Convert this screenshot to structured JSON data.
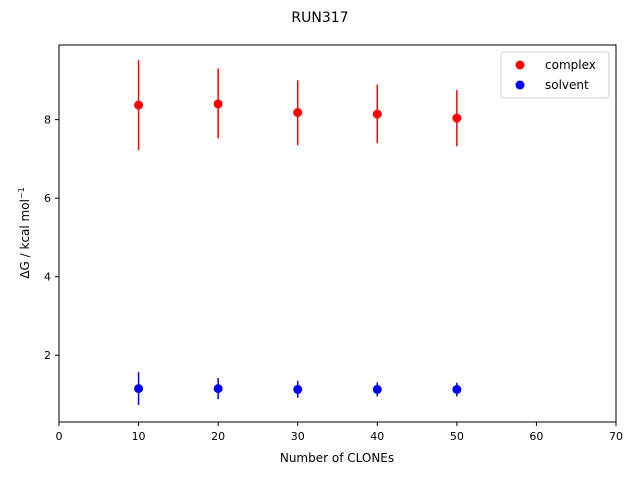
{
  "chart_data": {
    "type": "scatter",
    "title": "RUN317",
    "xlabel": "Number of CLONEs",
    "ylabel": "ΔG / kcal mol",
    "ylabel_superscript": "−1",
    "xlim": [
      0,
      70
    ],
    "ylim": [
      0.3,
      9.9
    ],
    "xticks": [
      0,
      10,
      20,
      30,
      40,
      50,
      60,
      70
    ],
    "yticks": [
      2,
      4,
      6,
      8
    ],
    "grid": false,
    "legend_position": "top-right",
    "series": [
      {
        "name": "complex",
        "color": "#ff0000",
        "x": [
          10,
          20,
          30,
          40,
          50
        ],
        "y": [
          8.37,
          8.4,
          8.18,
          8.14,
          8.04
        ],
        "y_err_low": [
          7.22,
          7.52,
          7.35,
          7.4,
          7.32
        ],
        "y_err_high": [
          9.52,
          9.3,
          9.0,
          8.89,
          8.75
        ]
      },
      {
        "name": "solvent",
        "color": "#0000ff",
        "x": [
          10,
          20,
          30,
          40,
          50
        ],
        "y": [
          1.15,
          1.15,
          1.13,
          1.13,
          1.13
        ],
        "y_err_low": [
          0.73,
          0.88,
          0.92,
          0.95,
          0.95
        ],
        "y_err_high": [
          1.57,
          1.42,
          1.35,
          1.31,
          1.3
        ]
      }
    ]
  }
}
